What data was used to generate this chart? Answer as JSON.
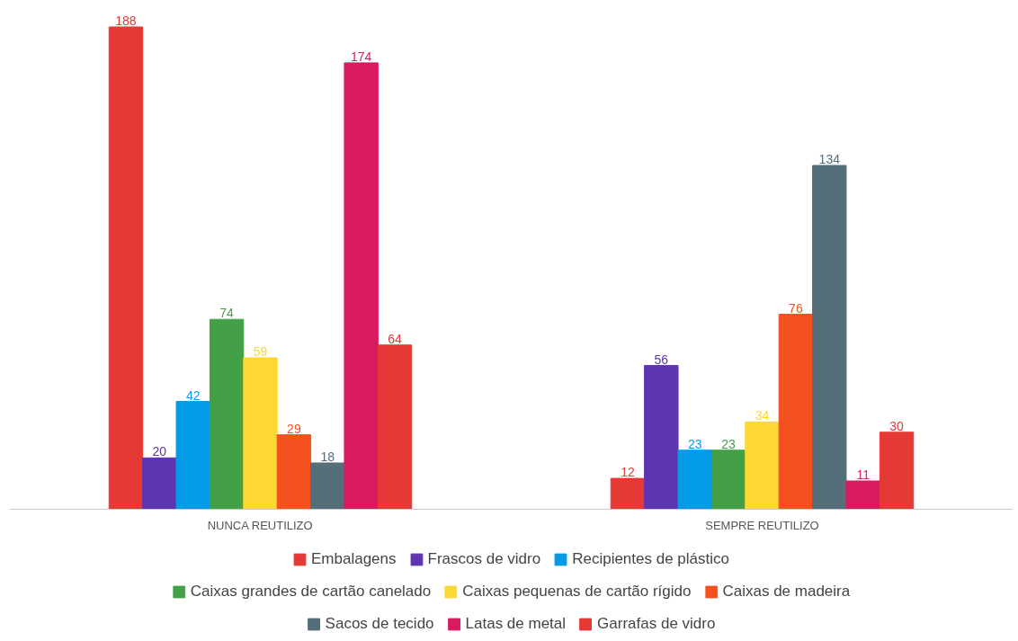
{
  "chart_data": {
    "type": "bar",
    "categories": [
      "NUNCA REUTILIZO",
      "SEMPRE REUTILIZO"
    ],
    "series": [
      {
        "name": "Embalagens",
        "color": "#e53935",
        "values": [
          188,
          12
        ]
      },
      {
        "name": "Frascos de vidro",
        "color": "#5e35b1",
        "values": [
          20,
          56
        ]
      },
      {
        "name": "Recipientes de plástico",
        "color": "#039be5",
        "values": [
          42,
          23
        ]
      },
      {
        "name": "Caixas grandes de cartão canelado",
        "color": "#43a047",
        "values": [
          74,
          23
        ]
      },
      {
        "name": "Caixas pequenas de cartão rígido",
        "color": "#fdd835",
        "values": [
          59,
          34
        ]
      },
      {
        "name": "Caixas de madeira",
        "color": "#f4511e",
        "values": [
          29,
          76
        ]
      },
      {
        "name": "Sacos de tecido",
        "color": "#546e7a",
        "values": [
          18,
          134
        ]
      },
      {
        "name": "Latas de metal",
        "color": "#d81b60",
        "values": [
          174,
          11
        ]
      },
      {
        "name": "Garrafas de vidro",
        "color": "#e53935",
        "values": [
          64,
          30
        ]
      }
    ],
    "data_labels": true,
    "legend": "bottom"
  }
}
